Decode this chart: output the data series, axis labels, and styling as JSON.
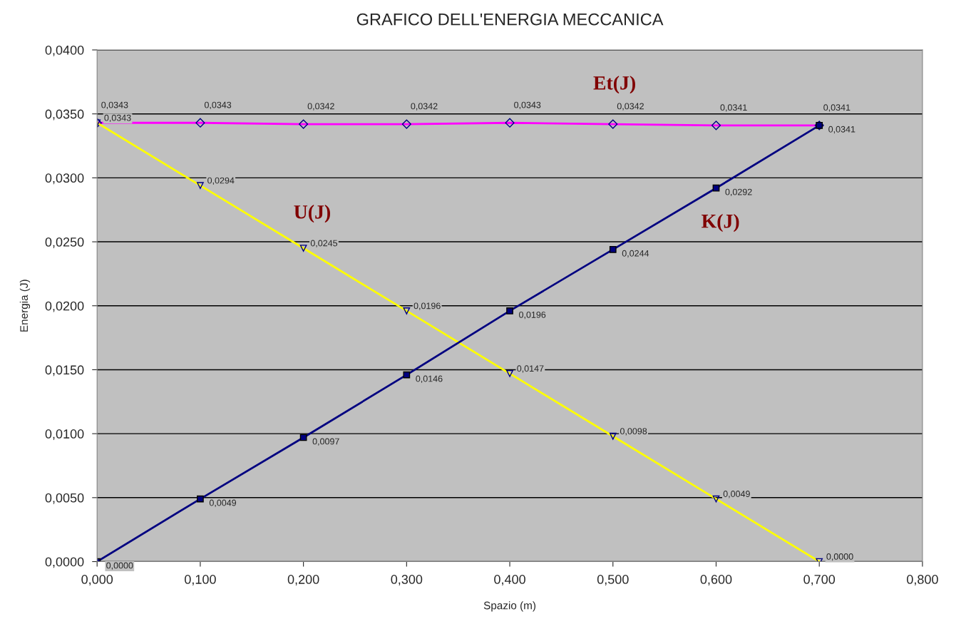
{
  "chart_data": {
    "type": "line",
    "title": "GRAFICO DELL'ENERGIA MECCANICA",
    "xlabel": "Spazio (m)",
    "ylabel": "Energia (J)",
    "x": [
      0.0,
      0.1,
      0.2,
      0.3,
      0.4,
      0.5,
      0.6,
      0.7
    ],
    "series": [
      {
        "name": "Et(J)",
        "color": "#ff00ff",
        "marker": "diamond",
        "values": [
          0.0343,
          0.0343,
          0.0342,
          0.0342,
          0.0343,
          0.0342,
          0.0341,
          0.0341
        ],
        "value_labels": [
          "0,0343",
          "0,0343",
          "0,0342",
          "0,0342",
          "0,0343",
          "0,0342",
          "0,0341",
          "0,0341"
        ]
      },
      {
        "name": "U(J)",
        "color": "#ffff00",
        "marker": "triangle",
        "values": [
          0.0343,
          0.0294,
          0.0245,
          0.0196,
          0.0147,
          0.0098,
          0.0049,
          0.0
        ],
        "value_labels": [
          "0,0343",
          "0,0294",
          "0,0245",
          "0,0196",
          "0,0147",
          "0,0098",
          "0,0049",
          "0,0000"
        ]
      },
      {
        "name": "K(J)",
        "color": "#000080",
        "marker": "square",
        "values": [
          0.0,
          0.0049,
          0.0097,
          0.0146,
          0.0196,
          0.0244,
          0.0292,
          0.0341
        ],
        "value_labels": [
          "0,0000",
          "0,0049",
          "0,0097",
          "0,0146",
          "0,0196",
          "0,0244",
          "0,0292",
          "0,0341"
        ]
      }
    ],
    "xlim": [
      0,
      0.8
    ],
    "ylim": [
      0,
      0.04
    ],
    "xticks": [
      {
        "value": 0,
        "label": "0,000"
      },
      {
        "value": 0.1,
        "label": "0,100"
      },
      {
        "value": 0.2,
        "label": "0,200"
      },
      {
        "value": 0.3,
        "label": "0,300"
      },
      {
        "value": 0.4,
        "label": "0,400"
      },
      {
        "value": 0.5,
        "label": "0,500"
      },
      {
        "value": 0.6,
        "label": "0,600"
      },
      {
        "value": 0.7,
        "label": "0,700"
      },
      {
        "value": 0.8,
        "label": "0,800"
      }
    ],
    "yticks": [
      {
        "value": 0,
        "label": "0,0000"
      },
      {
        "value": 0.005,
        "label": "0,0050"
      },
      {
        "value": 0.01,
        "label": "0,0100"
      },
      {
        "value": 0.015,
        "label": "0,0150"
      },
      {
        "value": 0.02,
        "label": "0,0200"
      },
      {
        "value": 0.025,
        "label": "0,0250"
      },
      {
        "value": 0.03,
        "label": "0,0300"
      },
      {
        "value": 0.035,
        "label": "0,0350"
      },
      {
        "value": 0.04,
        "label": "0,0400"
      }
    ],
    "grid": "y",
    "legend": false
  }
}
